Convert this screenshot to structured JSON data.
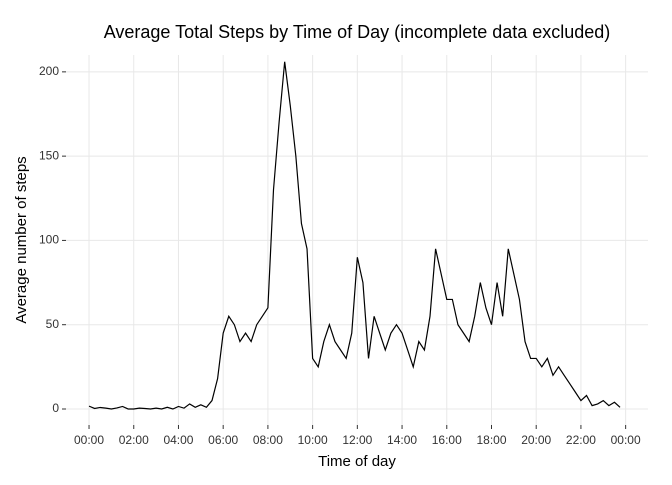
{
  "chart_data": {
    "type": "line",
    "title": "Average Total Steps by Time of Day (incomplete data excluded)",
    "x_label": "Time of day",
    "y_label": "Average number of steps",
    "x": [
      0,
      0.25,
      0.5,
      0.75,
      1,
      1.25,
      1.5,
      1.75,
      2,
      2.25,
      2.5,
      2.75,
      3,
      3.25,
      3.5,
      3.75,
      4,
      4.25,
      4.5,
      4.75,
      5,
      5.25,
      5.5,
      5.75,
      6,
      6.25,
      6.5,
      6.75,
      7,
      7.25,
      7.5,
      7.75,
      8,
      8.25,
      8.5,
      8.75,
      9,
      9.25,
      9.5,
      9.75,
      10,
      10.25,
      10.5,
      10.75,
      11,
      11.25,
      11.5,
      11.75,
      12,
      12.25,
      12.5,
      12.75,
      13,
      13.25,
      13.5,
      13.75,
      14,
      14.25,
      14.5,
      14.75,
      15,
      15.25,
      15.5,
      15.75,
      16,
      16.25,
      16.5,
      16.75,
      17,
      17.25,
      17.5,
      17.75,
      18,
      18.25,
      18.5,
      18.75,
      19,
      19.25,
      19.5,
      19.75,
      20,
      20.25,
      20.5,
      20.75,
      21,
      21.25,
      21.5,
      21.75,
      22,
      22.25,
      22.5,
      22.75,
      23,
      23.25,
      23.5,
      23.75
    ],
    "series": [
      {
        "color": "#000000",
        "values": [
          1.7,
          0.3,
          0.9,
          0.5,
          0,
          0.6,
          1.5,
          0,
          0,
          0.5,
          0.3,
          0,
          0.5,
          0,
          1,
          0,
          1.5,
          0.5,
          3,
          1,
          2.5,
          1,
          5,
          18,
          45,
          55,
          50,
          40,
          45,
          40,
          50,
          55,
          60,
          130,
          170,
          206,
          180,
          150,
          110,
          95,
          30,
          25,
          40,
          50,
          40,
          35,
          30,
          45,
          90,
          75,
          30,
          55,
          45,
          35,
          45,
          50,
          45,
          35,
          25,
          40,
          35,
          55,
          95,
          80,
          65,
          65,
          50,
          45,
          40,
          55,
          75,
          60,
          50,
          75,
          55,
          95,
          80,
          65,
          40,
          30,
          30,
          25,
          30,
          20,
          25,
          20,
          15,
          10,
          5,
          8,
          2,
          3,
          5,
          2,
          4,
          1
        ]
      }
    ],
    "xlim": [
      -1.03,
      25.0
    ],
    "xticks": [
      {
        "value": 0,
        "label": "00:00"
      },
      {
        "value": 2,
        "label": "02:00"
      },
      {
        "value": 4,
        "label": "04:00"
      },
      {
        "value": 6,
        "label": "06:00"
      },
      {
        "value": 8,
        "label": "08:00"
      },
      {
        "value": 10,
        "label": "10:00"
      },
      {
        "value": 12,
        "label": "12:00"
      },
      {
        "value": 14,
        "label": "14:00"
      },
      {
        "value": 16,
        "label": "16:00"
      },
      {
        "value": 18,
        "label": "18:00"
      },
      {
        "value": 20,
        "label": "20:00"
      },
      {
        "value": 22,
        "label": "22:00"
      },
      {
        "value": 24,
        "label": "00:00"
      }
    ],
    "ylim": [
      -9.5,
      210
    ],
    "yticks": [
      0,
      50,
      100,
      150,
      200
    ],
    "grid": true
  }
}
